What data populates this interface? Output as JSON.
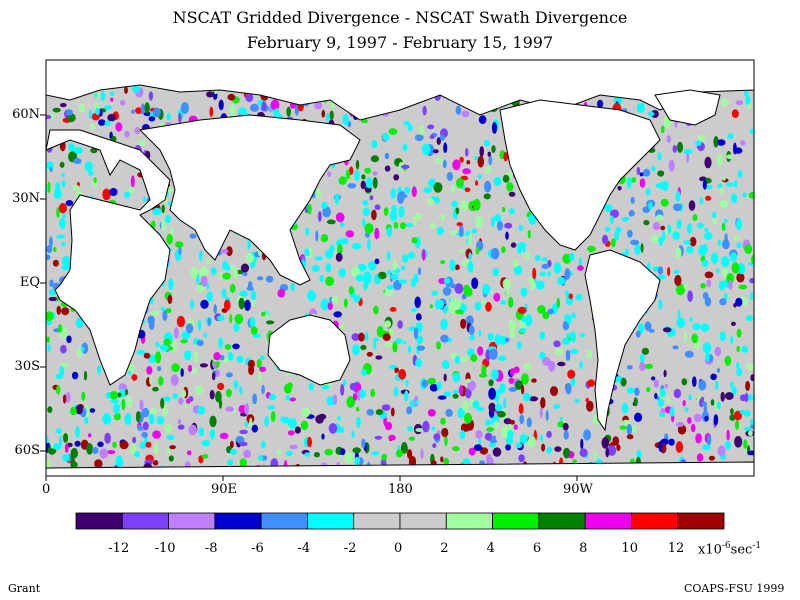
{
  "title": "NSCAT Gridded Divergence - NSCAT Swath Divergence",
  "subtitle": "February 9, 1997 - February 15, 1997",
  "lat_labels": [
    "60N",
    "30N",
    "EQ",
    "30S",
    "60S"
  ],
  "lon_labels": [
    "0",
    "90E",
    "180",
    "90W"
  ],
  "colorbar": {
    "colors": [
      "#3f006f",
      "#7f3fff",
      "#bf7fff",
      "#0000cd",
      "#3f8fff",
      "#00ffff",
      "#cccccc",
      "#cccccc",
      "#9fff9f",
      "#00ee00",
      "#007f00",
      "#ee00ee",
      "#ff0000",
      "#9f0000"
    ],
    "tick_labels": [
      "-12",
      "-10",
      "-8",
      "-6",
      "-4",
      "-2",
      "0",
      "2",
      "4",
      "6",
      "8",
      "10",
      "12"
    ],
    "unit_prefix": "x10",
    "unit_exp": "-6",
    "unit_mid": "sec",
    "unit_exp2": "-1"
  },
  "footer_left": "Grant",
  "footer_right": "COAPS-FSU 1999"
}
